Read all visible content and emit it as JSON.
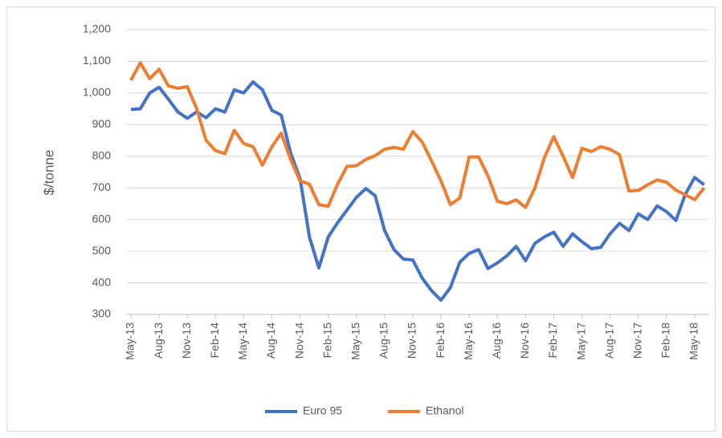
{
  "chart_data": {
    "type": "line",
    "y_label": "$/tonne",
    "categories": [
      "May-13",
      null,
      null,
      "Aug-13",
      null,
      null,
      "Nov-13",
      null,
      null,
      "Feb-14",
      null,
      null,
      "May-14",
      null,
      null,
      "Aug-14",
      null,
      null,
      "Nov-14",
      null,
      null,
      "Feb-15",
      null,
      null,
      "May-15",
      null,
      null,
      "Aug-15",
      null,
      null,
      "Nov-15",
      null,
      null,
      "Feb-16",
      null,
      null,
      "May-16",
      null,
      null,
      "Aug-16",
      null,
      null,
      "Nov-16",
      null,
      null,
      "Feb-17",
      null,
      null,
      "May-17",
      null,
      null,
      "Aug-17",
      null,
      null,
      "Nov-17",
      null,
      null,
      "Feb-18",
      null,
      null,
      "May-18",
      null
    ],
    "series": [
      {
        "name": "Euro 95",
        "color": "#4472c4",
        "values": [
          948,
          950,
          1000,
          1018,
          980,
          940,
          920,
          940,
          922,
          950,
          940,
          1010,
          1000,
          1035,
          1010,
          945,
          930,
          810,
          730,
          545,
          447,
          545,
          590,
          630,
          670,
          698,
          675,
          565,
          505,
          475,
          472,
          415,
          375,
          345,
          385,
          465,
          493,
          505,
          445,
          463,
          485,
          515,
          470,
          525,
          545,
          560,
          515,
          555,
          530,
          508,
          512,
          555,
          588,
          565,
          618,
          600,
          643,
          625,
          597,
          680,
          733,
          710
        ]
      },
      {
        "name": "Ethanol",
        "color": "#ed7d31",
        "values": [
          1040,
          1095,
          1045,
          1075,
          1022,
          1015,
          1020,
          950,
          850,
          818,
          808,
          882,
          840,
          830,
          772,
          830,
          873,
          790,
          722,
          712,
          647,
          642,
          712,
          768,
          770,
          790,
          802,
          822,
          828,
          822,
          878,
          845,
          785,
          722,
          647,
          668,
          798,
          798,
          738,
          658,
          650,
          662,
          638,
          700,
          795,
          862,
          800,
          733,
          825,
          815,
          830,
          822,
          805,
          690,
          692,
          710,
          725,
          718,
          693,
          678,
          663,
          700
        ]
      }
    ],
    "ylim": [
      300,
      1200
    ],
    "yticks": [
      300,
      400,
      500,
      600,
      700,
      800,
      900,
      {
        "value": 1000,
        "label": "1,000"
      },
      {
        "value": 1100,
        "label": "1,100"
      },
      {
        "value": 1200,
        "label": "1,200"
      }
    ],
    "grid": true,
    "legend": "bottom"
  }
}
